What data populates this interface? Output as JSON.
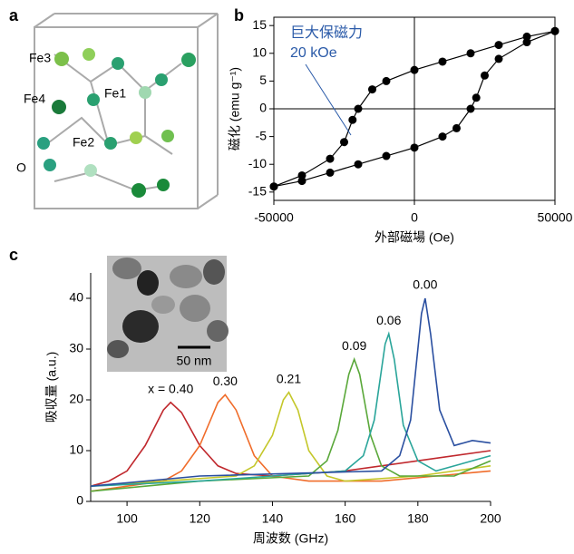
{
  "panel_labels": [
    "a",
    "b",
    "c"
  ],
  "structure": {
    "atom_labels": [
      "Fe3",
      "Fe4",
      "Fe1",
      "Fe2",
      "O"
    ]
  },
  "chart_data": [
    {
      "type": "scatter",
      "connect": true,
      "zero_lines": true,
      "frame": true,
      "xlabel": "外部磁場 (Oe)",
      "ylabel": "磁化 (emu g⁻¹)",
      "annotations": [
        "巨大保磁力",
        "20 kOe"
      ],
      "annotation_color": "#2a5aa8",
      "xlim": [
        -50000,
        50000
      ],
      "xticks": [
        -50000,
        0,
        50000
      ],
      "ylim": [
        -16.5,
        16.5
      ],
      "yticks": [
        -15,
        -10,
        -5,
        0,
        5,
        10,
        15
      ],
      "series": [
        {
          "color": "#000000",
          "x": [
            50000,
            40000,
            30000,
            20000,
            10000,
            0,
            -10000,
            -15000,
            -20000,
            -22000,
            -25000,
            -30000,
            -40000,
            -50000
          ],
          "values": [
            14,
            13,
            11.5,
            10,
            8.5,
            7,
            5,
            3.5,
            0,
            -2,
            -6,
            -9,
            -12,
            -14
          ]
        },
        {
          "color": "#000000",
          "x": [
            -50000,
            -40000,
            -30000,
            -20000,
            -10000,
            0,
            10000,
            15000,
            20000,
            22000,
            25000,
            30000,
            40000,
            50000
          ],
          "values": [
            -14,
            -13,
            -11.5,
            -10,
            -8.5,
            -7,
            -5,
            -3.5,
            0,
            2,
            6,
            9,
            12,
            14
          ]
        }
      ]
    },
    {
      "type": "line",
      "peak_labels": true,
      "xlabel": "周波数 (GHz)",
      "ylabel": "吸収量 (a.u.)",
      "inset_scale": "50 nm",
      "xlim": [
        90,
        200
      ],
      "xticks": [
        100,
        120,
        140,
        160,
        180,
        200
      ],
      "ylim": [
        0,
        45
      ],
      "yticks": [
        0,
        10,
        20,
        30,
        40
      ],
      "series": [
        {
          "name": "x = 0.40",
          "color": "#c0282d",
          "x": [
            90,
            95,
            100,
            105,
            110,
            112,
            115,
            120,
            125,
            130,
            140,
            160,
            180,
            200
          ],
          "values": [
            3,
            4,
            6,
            11,
            18,
            19.5,
            17.5,
            11,
            7,
            5.5,
            5,
            6,
            8,
            10
          ]
        },
        {
          "name": "0.30",
          "color": "#f06c2a",
          "x": [
            90,
            100,
            110,
            115,
            120,
            125,
            127,
            130,
            135,
            140,
            150,
            170,
            200
          ],
          "values": [
            2,
            3,
            4,
            6,
            11,
            19.5,
            21,
            18,
            9,
            5,
            4,
            4,
            6
          ]
        },
        {
          "name": "0.21",
          "color": "#c4c72a",
          "x": [
            90,
            110,
            130,
            135,
            140,
            143,
            144.5,
            147,
            150,
            155,
            160,
            180,
            200
          ],
          "values": [
            3,
            4,
            5,
            7,
            13,
            20,
            21.5,
            18,
            10,
            5,
            4,
            5,
            7
          ]
        },
        {
          "name": "0.09",
          "color": "#5aa83a",
          "x": [
            90,
            120,
            150,
            155,
            158,
            161,
            162.5,
            164,
            167,
            170,
            175,
            190,
            200
          ],
          "values": [
            2,
            4,
            5,
            8,
            14,
            25,
            28,
            25,
            13,
            7,
            5,
            5,
            8
          ]
        },
        {
          "name": "0.06",
          "color": "#2aa59a",
          "x": [
            90,
            120,
            160,
            165,
            168,
            171,
            172,
            173.5,
            176,
            180,
            185,
            200
          ],
          "values": [
            3,
            4,
            6,
            9,
            16,
            31,
            33,
            28,
            15,
            8,
            6,
            9
          ]
        },
        {
          "name": "0.00",
          "color": "#2a4fa0",
          "x": [
            90,
            120,
            170,
            175,
            178,
            181,
            182,
            183.5,
            186,
            190,
            195,
            200
          ],
          "values": [
            3,
            5,
            6,
            9,
            16,
            37,
            40,
            33,
            18,
            11,
            12,
            11.5
          ]
        }
      ]
    }
  ]
}
